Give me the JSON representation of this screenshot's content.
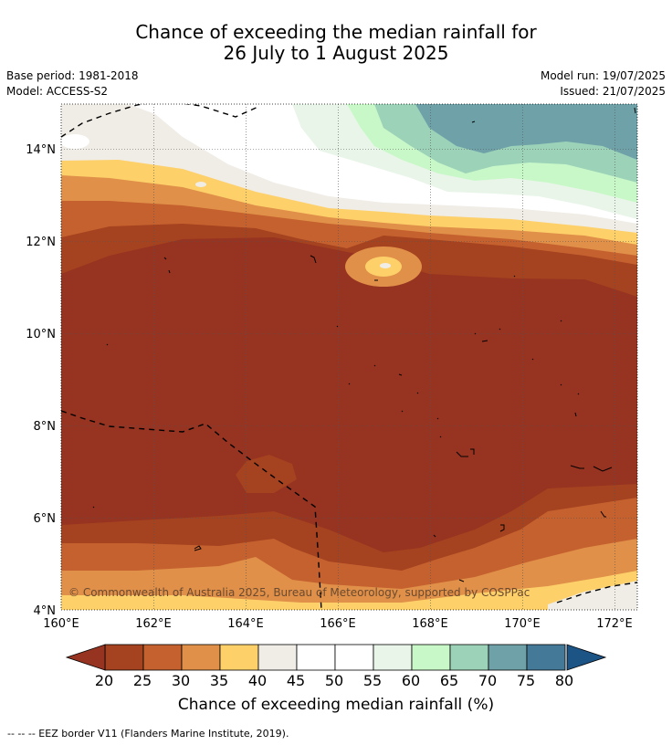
{
  "title_line1": "Chance of exceeding the median rainfall for",
  "title_line2": "26 July to 1 August 2025",
  "base_period": "Base period: 1981-2018",
  "model": "Model: ACCESS-S2",
  "model_run": "Model run: 19/07/2025",
  "issued": "Issued: 21/07/2025",
  "copyright": "© Commonwealth of Australia 2025, Bureau of Meteorology, supported by COSPPac",
  "lat_labels": [
    "14°N",
    "12°N",
    "10°N",
    "8°N",
    "6°N",
    "4°N"
  ],
  "lon_labels": [
    "160°E",
    "162°E",
    "164°E",
    "166°E",
    "168°E",
    "170°E",
    "172°E"
  ],
  "colorbar": {
    "ticks": [
      "20",
      "25",
      "30",
      "35",
      "40",
      "45",
      "50",
      "55",
      "60",
      "65",
      "70",
      "75",
      "80"
    ],
    "colors": [
      "#a5421f",
      "#c5612f",
      "#e09048",
      "#fdd06a",
      "#f0ece6",
      "#ffffff",
      "#ffffff",
      "#e9f5e9",
      "#c8f8c8",
      "#9cd2b8",
      "#6ea2a8",
      "#447a98"
    ],
    "under_color": "#963321",
    "over_color": "#1c5486",
    "title": "Chance of exceeding median rainfall (%)"
  },
  "footnote": "--  --  -- EEZ border V11 (Flanders Marine Institute, 2019)."
}
